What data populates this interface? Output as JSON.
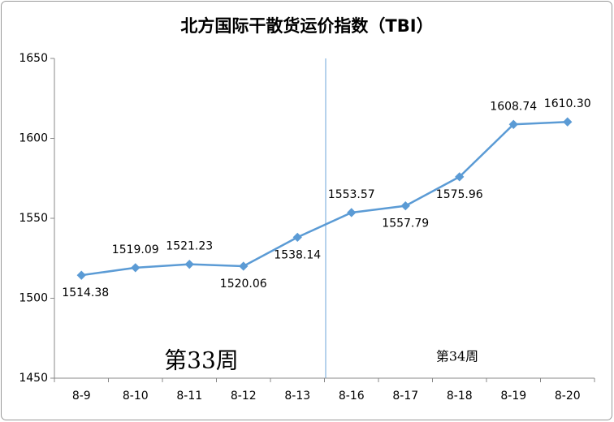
{
  "chart_data": {
    "type": "line",
    "title": "北方国际干散货运价指数（TBI）",
    "categories": [
      "8-9",
      "8-10",
      "8-11",
      "8-12",
      "8-13",
      "8-16",
      "8-17",
      "8-18",
      "8-19",
      "8-20"
    ],
    "series": [
      {
        "name": "TBI",
        "color": "#5b9bd5",
        "values": [
          1514.38,
          1519.09,
          1521.23,
          1520.06,
          1538.14,
          1553.57,
          1557.79,
          1575.96,
          1608.74,
          1610.3
        ],
        "value_labels": [
          "1514.38",
          "1519.09",
          "1521.23",
          "1520.06",
          "1538.14",
          "1553.57",
          "1557.79",
          "1575.96",
          "1608.74",
          "1610.30"
        ]
      }
    ],
    "ylim": [
      1450,
      1650
    ],
    "yticks": [
      1450,
      1500,
      1550,
      1600,
      1650
    ],
    "grid": false,
    "annotations": [
      "第33周",
      "第34周"
    ]
  }
}
